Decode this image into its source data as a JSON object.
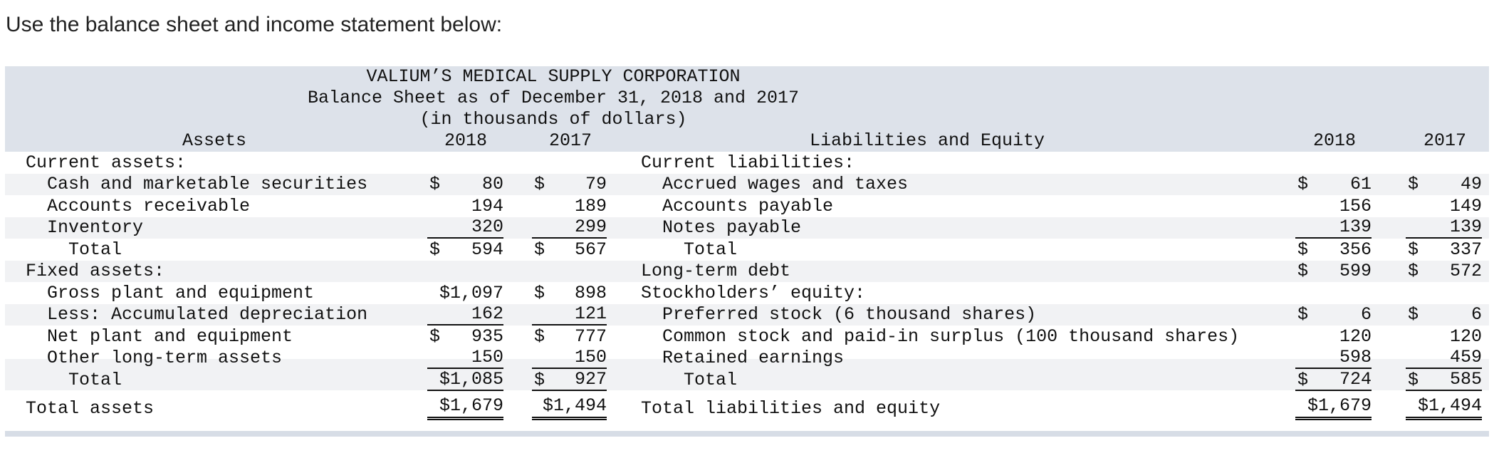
{
  "intro": "Use the balance sheet and income statement below:",
  "header": {
    "company": "VALIUM’S MEDICAL SUPPLY CORPORATION",
    "title": "Balance Sheet as of December 31, 2018 and 2017",
    "units": "(in thousands of dollars)",
    "assets_heading": "Assets",
    "liabilities_heading": "Liabilities and Equity",
    "year1": "2018",
    "year2": "2017"
  },
  "assets": {
    "current_heading": "Current assets:",
    "cash": {
      "label": "Cash and marketable securities",
      "cur_sym": "$",
      "cur": "80",
      "prev_sym": "$",
      "prev": "79"
    },
    "receivables": {
      "label": "Accounts receivable",
      "cur": "194",
      "prev": "189"
    },
    "inventory": {
      "label": "Inventory",
      "cur": "320",
      "prev": "299"
    },
    "current_total": {
      "label": "Total",
      "cur_sym": "$",
      "cur": "594",
      "prev_sym": "$",
      "prev": "567"
    },
    "fixed_heading": "Fixed assets:",
    "gross_plant": {
      "label": "Gross plant and equipment",
      "cur": "$1,097",
      "prev_sym": "$",
      "prev": "898"
    },
    "depreciation": {
      "label": "Less: Accumulated depreciation",
      "cur": "162",
      "prev": "121"
    },
    "net_plant": {
      "label": "Net plant and equipment",
      "cur_sym": "$",
      "cur": "935",
      "prev_sym": "$",
      "prev": "777"
    },
    "other_lt": {
      "label": "Other long-term assets",
      "cur": "150",
      "prev": "150"
    },
    "fixed_total": {
      "label": "Total",
      "cur": "$1,085",
      "prev_sym": "$",
      "prev": "927"
    },
    "total_assets": {
      "label": "Total assets",
      "cur": "$1,679",
      "prev": "$1,494"
    }
  },
  "liabilities": {
    "current_heading": "Current liabilities:",
    "accrued": {
      "label": "Accrued wages and taxes",
      "cur_sym": "$",
      "cur": "61",
      "prev_sym": "$",
      "prev": "49"
    },
    "payables": {
      "label": "Accounts payable",
      "cur": "156",
      "prev": "149"
    },
    "notes": {
      "label": "Notes payable",
      "cur": "139",
      "prev": "139"
    },
    "current_total": {
      "label": "Total",
      "cur_sym": "$",
      "cur": "356",
      "prev_sym": "$",
      "prev": "337"
    },
    "lt_debt": {
      "label": "Long-term debt",
      "cur_sym": "$",
      "cur": "599",
      "prev_sym": "$",
      "prev": "572"
    },
    "equity_heading": "Stockholders’ equity:",
    "preferred": {
      "label": "Preferred stock (6 thousand shares)",
      "cur_sym": "$",
      "cur": "6",
      "prev_sym": "$",
      "prev": "6"
    },
    "common": {
      "label": "Common stock and paid-in surplus (100 thousand shares)",
      "cur": "120",
      "prev": "120"
    },
    "retained": {
      "label": "Retained earnings",
      "cur": "598",
      "prev": "459"
    },
    "equity_total": {
      "label": "Total",
      "cur_sym": "$",
      "cur": "724",
      "prev_sym": "$",
      "prev": "585"
    },
    "total_le": {
      "label": "Total liabilities and equity",
      "cur": "$1,679",
      "prev": "$1,494"
    }
  }
}
